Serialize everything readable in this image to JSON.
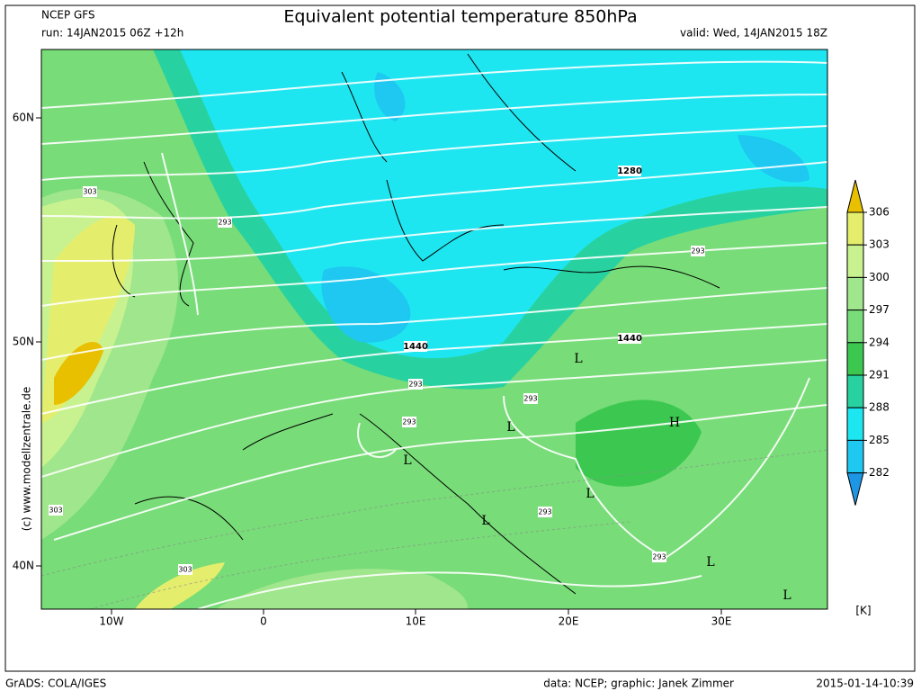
{
  "header": {
    "model": "NCEP GFS",
    "run": "run: 14JAN2015 06Z +12h",
    "title": "Equivalent potential temperature 850hPa",
    "valid": "valid: Wed, 14JAN2015 18Z"
  },
  "map": {
    "lat_labels": [
      "60N",
      "50N",
      "40N"
    ],
    "lon_labels": [
      "10W",
      "0",
      "10E",
      "20E",
      "30E"
    ],
    "contour_labels": [
      "303",
      "293",
      "1280",
      "293",
      "1440",
      "1440",
      "293",
      "293",
      "293",
      "293",
      "293",
      "303",
      "303"
    ],
    "pressure_centers": [
      "L",
      "L",
      "L",
      "L",
      "L",
      "L",
      "L",
      "H"
    ],
    "credit": "(c) www.modellzentrale.de"
  },
  "colorbar": {
    "levels": [
      306,
      303,
      300,
      297,
      294,
      291,
      288,
      285,
      282
    ],
    "colors": [
      "#e8c000",
      "#e4ee6c",
      "#c8f290",
      "#a0e68c",
      "#78dc78",
      "#3cc850",
      "#28d2a0",
      "#1ee6f0",
      "#1ec8f0",
      "#1e96e6"
    ],
    "unit": "[K]"
  },
  "footer": {
    "software": "GrADS: COLA/IGES",
    "credit": "data: NCEP; graphic: Janek Zimmer",
    "timestamp": "2015-01-14-10:39"
  }
}
